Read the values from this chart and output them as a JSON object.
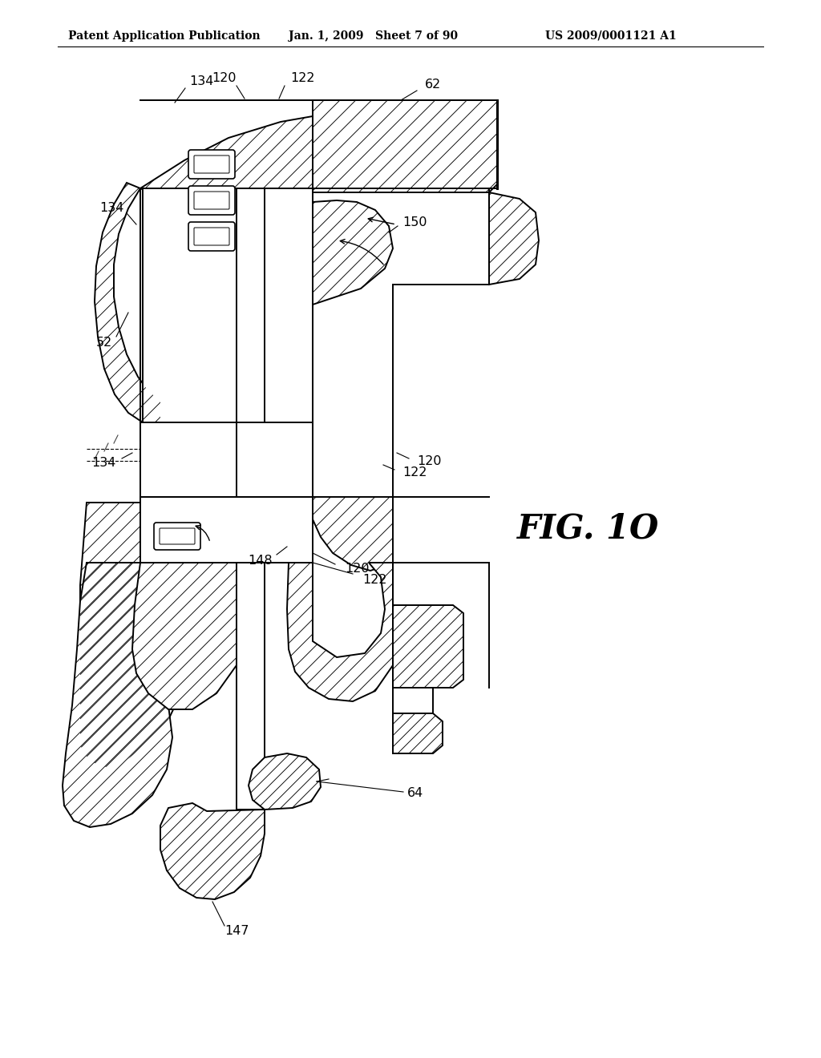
{
  "bg": "#ffffff",
  "header_left": "Patent Application Publication",
  "header_mid": "Jan. 1, 2009   Sheet 7 of 90",
  "header_right": "US 2009/0001121 A1",
  "fig_label": "FIG. 1O",
  "lw_thin": 0.8,
  "lw_med": 1.4,
  "lw_thick": 2.2,
  "hatch_sp": 13,
  "hatch_lw": 0.65
}
